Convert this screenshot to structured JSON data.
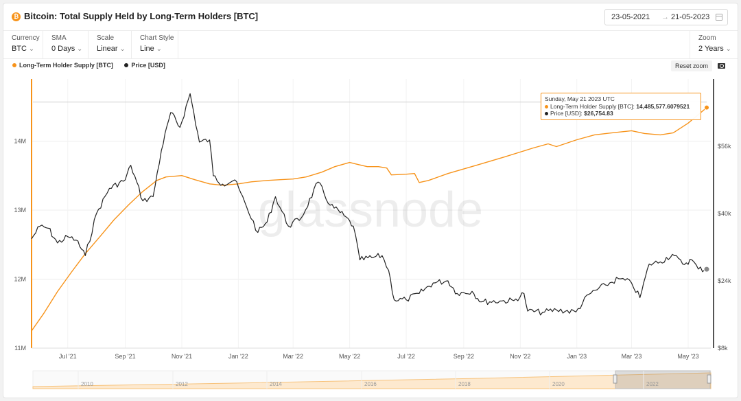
{
  "header": {
    "title": "Bitcoin: Total Supply Held by Long-Term Holders [BTC]",
    "date_start": "23-05-2021",
    "date_arrow": "→",
    "date_end": "21-05-2023"
  },
  "controls": {
    "currency": {
      "label": "Currency",
      "value": "BTC"
    },
    "sma": {
      "label": "SMA",
      "value": "0 Days"
    },
    "scale": {
      "label": "Scale",
      "value": "Linear"
    },
    "chart_style": {
      "label": "Chart Style",
      "value": "Line"
    },
    "zoom": {
      "label": "Zoom",
      "value": "2 Years"
    }
  },
  "toolbar": {
    "reset_zoom": "Reset zoom"
  },
  "watermark": "glassnode",
  "tooltip": {
    "date": "Sunday, May 21 2023 UTC",
    "lth_label": "Long-Term Holder Supply [BTC]:",
    "lth_value": "14,485,577.6079521",
    "price_label": "Price [USD]:",
    "price_value": "$26,754.83"
  },
  "colors": {
    "lth": "#f7931a",
    "price": "#222222"
  },
  "chart_data": {
    "type": "line",
    "x_tick_labels": [
      "Jul '21",
      "Sep '21",
      "Nov '21",
      "Jan '22",
      "Mar '22",
      "May '22",
      "Jul '22",
      "Sep '22",
      "Nov '22",
      "Jan '23",
      "Mar '23",
      "May '23"
    ],
    "left_axis": {
      "ticks": [
        "11M",
        "12M",
        "13M",
        "14M"
      ],
      "range": [
        11000000,
        14900000
      ]
    },
    "right_axis": {
      "ticks": [
        "$8k",
        "$24k",
        "$40k",
        "$56k"
      ],
      "range": [
        8000,
        72000
      ]
    },
    "series": [
      {
        "name": "Long-Term Holder Supply [BTC]",
        "axis": "left",
        "points": [
          [
            "2021-05-23",
            11250000
          ],
          [
            "2021-06-05",
            11500000
          ],
          [
            "2021-06-20",
            11820000
          ],
          [
            "2021-07-05",
            12100000
          ],
          [
            "2021-07-20",
            12370000
          ],
          [
            "2021-08-05",
            12620000
          ],
          [
            "2021-08-20",
            12860000
          ],
          [
            "2021-09-05",
            13080000
          ],
          [
            "2021-09-20",
            13270000
          ],
          [
            "2021-10-05",
            13430000
          ],
          [
            "2021-10-15",
            13480000
          ],
          [
            "2021-11-01",
            13500000
          ],
          [
            "2021-11-15",
            13440000
          ],
          [
            "2021-12-01",
            13380000
          ],
          [
            "2021-12-15",
            13360000
          ],
          [
            "2022-01-01",
            13380000
          ],
          [
            "2022-01-15",
            13410000
          ],
          [
            "2022-02-01",
            13430000
          ],
          [
            "2022-02-15",
            13440000
          ],
          [
            "2022-03-01",
            13450000
          ],
          [
            "2022-03-15",
            13480000
          ],
          [
            "2022-04-01",
            13550000
          ],
          [
            "2022-04-15",
            13630000
          ],
          [
            "2022-05-01",
            13690000
          ],
          [
            "2022-05-10",
            13660000
          ],
          [
            "2022-05-20",
            13630000
          ],
          [
            "2022-06-01",
            13630000
          ],
          [
            "2022-06-10",
            13610000
          ],
          [
            "2022-06-15",
            13510000
          ],
          [
            "2022-07-01",
            13520000
          ],
          [
            "2022-07-10",
            13530000
          ],
          [
            "2022-07-15",
            13400000
          ],
          [
            "2022-07-25",
            13430000
          ],
          [
            "2022-08-15",
            13530000
          ],
          [
            "2022-09-15",
            13650000
          ],
          [
            "2022-10-15",
            13770000
          ],
          [
            "2022-11-15",
            13900000
          ],
          [
            "2022-12-01",
            13960000
          ],
          [
            "2022-12-10",
            13920000
          ],
          [
            "2023-01-01",
            14020000
          ],
          [
            "2023-01-20",
            14090000
          ],
          [
            "2023-02-15",
            14130000
          ],
          [
            "2023-03-01",
            14150000
          ],
          [
            "2023-03-15",
            14110000
          ],
          [
            "2023-04-01",
            14090000
          ],
          [
            "2023-04-15",
            14120000
          ],
          [
            "2023-05-01",
            14260000
          ],
          [
            "2023-05-21",
            14485578
          ]
        ]
      },
      {
        "name": "Price [USD]",
        "axis": "right",
        "points": [
          [
            "2021-05-23",
            34000
          ],
          [
            "2021-06-01",
            37000
          ],
          [
            "2021-06-10",
            36500
          ],
          [
            "2021-06-20",
            33000
          ],
          [
            "2021-07-01",
            34500
          ],
          [
            "2021-07-10",
            33700
          ],
          [
            "2021-07-20",
            30000
          ],
          [
            "2021-08-01",
            40000
          ],
          [
            "2021-08-15",
            46000
          ],
          [
            "2021-09-01",
            48000
          ],
          [
            "2021-09-07",
            51500
          ],
          [
            "2021-09-20",
            43000
          ],
          [
            "2021-10-01",
            44000
          ],
          [
            "2021-10-10",
            55000
          ],
          [
            "2021-10-20",
            64000
          ],
          [
            "2021-10-30",
            60500
          ],
          [
            "2021-11-10",
            68500
          ],
          [
            "2021-11-20",
            57000
          ],
          [
            "2021-12-01",
            57500
          ],
          [
            "2021-12-05",
            49000
          ],
          [
            "2021-12-15",
            47000
          ],
          [
            "2021-12-28",
            48000
          ],
          [
            "2022-01-10",
            41500
          ],
          [
            "2022-01-22",
            35500
          ],
          [
            "2022-02-01",
            38000
          ],
          [
            "2022-02-10",
            44000
          ],
          [
            "2022-02-24",
            37000
          ],
          [
            "2022-03-10",
            39000
          ],
          [
            "2022-03-28",
            47500
          ],
          [
            "2022-04-10",
            42000
          ],
          [
            "2022-04-25",
            39500
          ],
          [
            "2022-05-05",
            37000
          ],
          [
            "2022-05-12",
            29000
          ],
          [
            "2022-05-25",
            29500
          ],
          [
            "2022-06-05",
            30000
          ],
          [
            "2022-06-12",
            26500
          ],
          [
            "2022-06-18",
            19500
          ],
          [
            "2022-07-01",
            19500
          ],
          [
            "2022-07-15",
            21000
          ],
          [
            "2022-07-30",
            23500
          ],
          [
            "2022-08-15",
            24000
          ],
          [
            "2022-08-25",
            21000
          ],
          [
            "2022-09-10",
            21500
          ],
          [
            "2022-09-20",
            19000
          ],
          [
            "2022-10-10",
            19200
          ],
          [
            "2022-10-25",
            19300
          ],
          [
            "2022-11-05",
            21000
          ],
          [
            "2022-11-09",
            16800
          ],
          [
            "2022-11-25",
            16500
          ],
          [
            "2022-12-10",
            17100
          ],
          [
            "2022-12-31",
            16600
          ],
          [
            "2023-01-14",
            20800
          ],
          [
            "2023-02-01",
            23000
          ],
          [
            "2023-02-15",
            24500
          ],
          [
            "2023-03-01",
            23500
          ],
          [
            "2023-03-10",
            20000
          ],
          [
            "2023-03-20",
            28000
          ],
          [
            "2023-04-01",
            28500
          ],
          [
            "2023-04-14",
            30300
          ],
          [
            "2023-04-25",
            28000
          ],
          [
            "2023-05-05",
            29000
          ],
          [
            "2023-05-12",
            26800
          ],
          [
            "2023-05-21",
            26755
          ]
        ]
      }
    ],
    "navigator_x_labels": [
      "2010",
      "2012",
      "2014",
      "2016",
      "2018",
      "2020",
      "2022"
    ]
  }
}
